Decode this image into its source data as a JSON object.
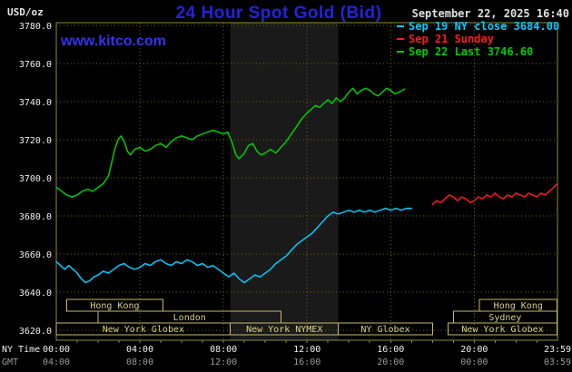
{
  "header": {
    "units_label": "USD/oz",
    "title": "24 Hour Spot Gold (Bid)",
    "datetime": "September 22, 2025 16:40",
    "watermark": "www.kitco.com"
  },
  "legend": [
    {
      "label": "Sep 19 NY close 3684.00",
      "color": "#00ccff"
    },
    {
      "label": "Sep 21 Sunday",
      "color": "#ff1a1a"
    },
    {
      "label": "Sep 22 Last 3746.60",
      "color": "#00cc00"
    }
  ],
  "chart_data": {
    "type": "line",
    "title": "24 Hour Spot Gold (Bid)",
    "ylabel": "USD/oz",
    "ylim": [
      3620,
      3780
    ],
    "yticks": [
      3620,
      3640,
      3660,
      3680,
      3700,
      3720,
      3740,
      3760,
      3780
    ],
    "xlim_hours": [
      0,
      23.983
    ],
    "xgrid_hours": [
      4,
      8,
      12,
      16,
      20
    ],
    "grid": true,
    "legend_position": "top-right",
    "x_axis": {
      "ny_label": "NY Time",
      "gmt_label": "GMT",
      "ny_ticks": [
        {
          "hour": 0,
          "text": "00:00"
        },
        {
          "hour": 4,
          "text": "04:00"
        },
        {
          "hour": 8,
          "text": "08:00"
        },
        {
          "hour": 12,
          "text": "12:00"
        },
        {
          "hour": 16,
          "text": "16:00"
        },
        {
          "hour": 20,
          "text": "20:00"
        },
        {
          "hour": 23.983,
          "text": "23:59"
        }
      ],
      "gmt_ticks": [
        {
          "hour": 0,
          "text": "04:00"
        },
        {
          "hour": 4,
          "text": "08:00"
        },
        {
          "hour": 8,
          "text": "12:00"
        },
        {
          "hour": 12,
          "text": "16:00"
        },
        {
          "hour": 16,
          "text": "20:00"
        },
        {
          "hour": 20,
          "text": "00:00"
        },
        {
          "hour": 23.983,
          "text": "03:59"
        }
      ]
    },
    "series": [
      {
        "id": "sep19",
        "name": "Sep 19 NY close",
        "close": 3684.0,
        "color": "#00ccff",
        "points": [
          [
            0,
            3656
          ],
          [
            0.2,
            3654
          ],
          [
            0.4,
            3652
          ],
          [
            0.6,
            3654
          ],
          [
            0.8,
            3652
          ],
          [
            1,
            3650
          ],
          [
            1.2,
            3647
          ],
          [
            1.4,
            3645
          ],
          [
            1.6,
            3646
          ],
          [
            1.8,
            3648
          ],
          [
            2,
            3649
          ],
          [
            2.25,
            3651
          ],
          [
            2.5,
            3650
          ],
          [
            2.75,
            3652
          ],
          [
            3,
            3654
          ],
          [
            3.25,
            3655
          ],
          [
            3.5,
            3653
          ],
          [
            3.75,
            3652
          ],
          [
            4,
            3653
          ],
          [
            4.25,
            3655
          ],
          [
            4.5,
            3654
          ],
          [
            4.75,
            3656
          ],
          [
            5,
            3657
          ],
          [
            5.25,
            3655
          ],
          [
            5.5,
            3654
          ],
          [
            5.75,
            3656
          ],
          [
            6,
            3655
          ],
          [
            6.25,
            3657
          ],
          [
            6.5,
            3656
          ],
          [
            6.75,
            3654
          ],
          [
            7,
            3655
          ],
          [
            7.25,
            3653
          ],
          [
            7.5,
            3654
          ],
          [
            7.75,
            3652
          ],
          [
            8,
            3650
          ],
          [
            8.25,
            3648
          ],
          [
            8.5,
            3650
          ],
          [
            8.75,
            3647
          ],
          [
            9,
            3645
          ],
          [
            9.25,
            3647
          ],
          [
            9.5,
            3649
          ],
          [
            9.75,
            3648
          ],
          [
            10,
            3650
          ],
          [
            10.25,
            3652
          ],
          [
            10.5,
            3655
          ],
          [
            10.75,
            3657
          ],
          [
            11,
            3659
          ],
          [
            11.25,
            3662
          ],
          [
            11.5,
            3665
          ],
          [
            11.75,
            3667
          ],
          [
            12,
            3669
          ],
          [
            12.25,
            3671
          ],
          [
            12.5,
            3674
          ],
          [
            12.75,
            3677
          ],
          [
            13,
            3680
          ],
          [
            13.25,
            3682
          ],
          [
            13.5,
            3681
          ],
          [
            13.75,
            3682
          ],
          [
            14,
            3683
          ],
          [
            14.25,
            3682
          ],
          [
            14.5,
            3683
          ],
          [
            14.75,
            3682
          ],
          [
            15,
            3683
          ],
          [
            15.25,
            3682
          ],
          [
            15.5,
            3683
          ],
          [
            15.75,
            3684
          ],
          [
            16,
            3683
          ],
          [
            16.25,
            3684
          ],
          [
            16.5,
            3683
          ],
          [
            16.75,
            3684
          ],
          [
            17,
            3684
          ]
        ]
      },
      {
        "id": "sep21",
        "name": "Sep 21 Sunday",
        "color": "#ff1a1a",
        "points": [
          [
            18,
            3686
          ],
          [
            18.2,
            3688
          ],
          [
            18.4,
            3687
          ],
          [
            18.6,
            3689
          ],
          [
            18.8,
            3691
          ],
          [
            19,
            3690
          ],
          [
            19.2,
            3688
          ],
          [
            19.4,
            3690
          ],
          [
            19.6,
            3689
          ],
          [
            19.8,
            3687
          ],
          [
            20,
            3688
          ],
          [
            20.2,
            3690
          ],
          [
            20.4,
            3689
          ],
          [
            20.6,
            3691
          ],
          [
            20.8,
            3690
          ],
          [
            21,
            3692
          ],
          [
            21.2,
            3690
          ],
          [
            21.4,
            3689
          ],
          [
            21.6,
            3691
          ],
          [
            21.8,
            3690
          ],
          [
            22,
            3692
          ],
          [
            22.2,
            3691
          ],
          [
            22.4,
            3690
          ],
          [
            22.6,
            3692
          ],
          [
            22.8,
            3691
          ],
          [
            23,
            3690
          ],
          [
            23.2,
            3692
          ],
          [
            23.4,
            3691
          ],
          [
            23.6,
            3693
          ],
          [
            23.8,
            3695
          ],
          [
            23.98,
            3697
          ]
        ]
      },
      {
        "id": "sep22",
        "name": "Sep 22 Last",
        "last": 3746.6,
        "color": "#00cc00",
        "points": [
          [
            0,
            3695
          ],
          [
            0.25,
            3693
          ],
          [
            0.5,
            3691
          ],
          [
            0.75,
            3690
          ],
          [
            1,
            3691
          ],
          [
            1.25,
            3693
          ],
          [
            1.5,
            3694
          ],
          [
            1.75,
            3693
          ],
          [
            2,
            3695
          ],
          [
            2.25,
            3697
          ],
          [
            2.5,
            3701
          ],
          [
            2.65,
            3708
          ],
          [
            2.8,
            3715
          ],
          [
            2.95,
            3720
          ],
          [
            3.1,
            3722
          ],
          [
            3.25,
            3719
          ],
          [
            3.4,
            3714
          ],
          [
            3.55,
            3712
          ],
          [
            3.75,
            3715
          ],
          [
            4,
            3716
          ],
          [
            4.25,
            3714
          ],
          [
            4.5,
            3715
          ],
          [
            4.75,
            3717
          ],
          [
            5,
            3718
          ],
          [
            5.25,
            3716
          ],
          [
            5.5,
            3719
          ],
          [
            5.75,
            3721
          ],
          [
            6,
            3722
          ],
          [
            6.25,
            3721
          ],
          [
            6.5,
            3720
          ],
          [
            6.75,
            3722
          ],
          [
            7,
            3723
          ],
          [
            7.25,
            3724
          ],
          [
            7.5,
            3725
          ],
          [
            7.75,
            3724
          ],
          [
            8,
            3723
          ],
          [
            8.2,
            3724
          ],
          [
            8.4,
            3719
          ],
          [
            8.6,
            3712
          ],
          [
            8.75,
            3710
          ],
          [
            9,
            3713
          ],
          [
            9.2,
            3717
          ],
          [
            9.4,
            3718
          ],
          [
            9.6,
            3714
          ],
          [
            9.8,
            3712
          ],
          [
            10,
            3713
          ],
          [
            10.25,
            3715
          ],
          [
            10.5,
            3713
          ],
          [
            10.75,
            3716
          ],
          [
            11,
            3719
          ],
          [
            11.25,
            3723
          ],
          [
            11.5,
            3727
          ],
          [
            11.75,
            3731
          ],
          [
            12,
            3734
          ],
          [
            12.2,
            3736
          ],
          [
            12.4,
            3738
          ],
          [
            12.6,
            3737
          ],
          [
            12.8,
            3739
          ],
          [
            13,
            3741
          ],
          [
            13.2,
            3739
          ],
          [
            13.4,
            3742
          ],
          [
            13.6,
            3740
          ],
          [
            13.8,
            3742
          ],
          [
            14,
            3745
          ],
          [
            14.2,
            3747
          ],
          [
            14.4,
            3744
          ],
          [
            14.6,
            3746
          ],
          [
            14.8,
            3747
          ],
          [
            15,
            3746
          ],
          [
            15.2,
            3744
          ],
          [
            15.4,
            3743
          ],
          [
            15.6,
            3745
          ],
          [
            15.8,
            3747
          ],
          [
            16,
            3746
          ],
          [
            16.2,
            3744
          ],
          [
            16.4,
            3745
          ],
          [
            16.67,
            3746.6
          ]
        ]
      }
    ],
    "sessions": [
      {
        "label": "Hong Kong",
        "row": 1,
        "start": 0.5,
        "end": 5.1
      },
      {
        "label": "London",
        "row": 2,
        "start": 2.0,
        "end": 10.75
      },
      {
        "label": "New York Globex",
        "row": 3,
        "start": 0,
        "end": 8.33
      },
      {
        "label": "New York NYMEX",
        "row": 3,
        "start": 8.33,
        "end": 13.5,
        "shaded": true
      },
      {
        "label": "NY Globex",
        "row": 3,
        "start": 13.5,
        "end": 18.0
      },
      {
        "label": "New York Globex",
        "row": 3,
        "start": 18.75,
        "end": 23.96
      },
      {
        "label": "Sydney",
        "row": 2,
        "start": 19.0,
        "end": 23.96
      },
      {
        "label": "Hong Kong",
        "row": 1,
        "start": 20.25,
        "end": 23.96
      }
    ],
    "colors": {
      "background": "#000000",
      "band": "#1a1a1a",
      "grid": "#6b6b00",
      "border": "#8b8b3a",
      "session_box": "#c8b96e",
      "session_text": "#dccf8c",
      "axis_text": "#f0f0f0",
      "gmt_text": "#9a9a9a",
      "title": "#2323dd",
      "watermark": "#3434ee"
    }
  }
}
